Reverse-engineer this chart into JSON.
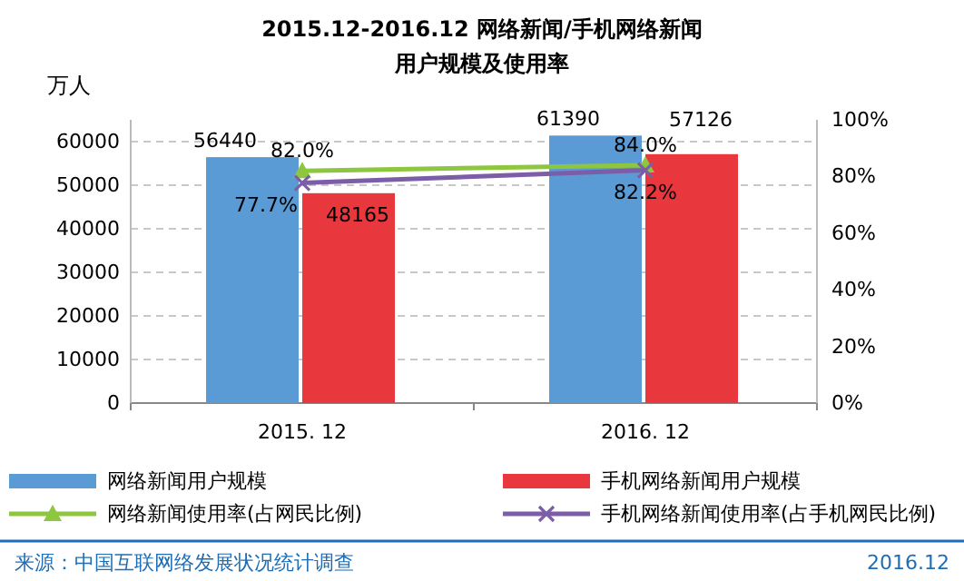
{
  "chart_data": {
    "type": "bar",
    "title": "2015.12-2016.12  网络新闻/手机网络新闻",
    "subtitle": "用户规模及使用率",
    "ylabel": "万人",
    "categories": [
      "2015. 12",
      "2016. 12"
    ],
    "series": [
      {
        "name": "网络新闻用户规模",
        "color": "#5b9bd5",
        "values": [
          56440,
          61390
        ]
      },
      {
        "name": "手机网络新闻用户规模",
        "color": "#e8383d",
        "values": [
          48165,
          57126
        ]
      },
      {
        "name": "网络新闻使用率(占网民比例)",
        "type": "line",
        "axis": "y2",
        "color": "#8dc63f",
        "marker": "triangle",
        "values": [
          82.0,
          84.0
        ],
        "value_labels": [
          "82.0%",
          "84.0%"
        ]
      },
      {
        "name": "手机网络新闻使用率(占手机网民比例)",
        "type": "line",
        "axis": "y2",
        "color": "#7b5ea7",
        "marker": "cross",
        "values": [
          77.7,
          82.2
        ],
        "value_labels": [
          "77.7%",
          "82.2%"
        ]
      }
    ],
    "ylim": [
      0,
      65000
    ],
    "yticks": [
      0,
      10000,
      20000,
      30000,
      40000,
      50000,
      60000
    ],
    "y2lim": [
      0,
      100
    ],
    "y2ticks": [
      {
        "value": 0,
        "label": "0%"
      },
      {
        "value": 20,
        "label": "20%"
      },
      {
        "value": 40,
        "label": "40%"
      },
      {
        "value": 60,
        "label": "60%"
      },
      {
        "value": 80,
        "label": "80%"
      },
      {
        "value": 100,
        "label": "100%"
      }
    ],
    "data_labels": true,
    "grid": "y",
    "legend": "bottom",
    "annotations": [
      "来源：中国互联网络发展状况统计调查",
      "2016.12"
    ]
  }
}
